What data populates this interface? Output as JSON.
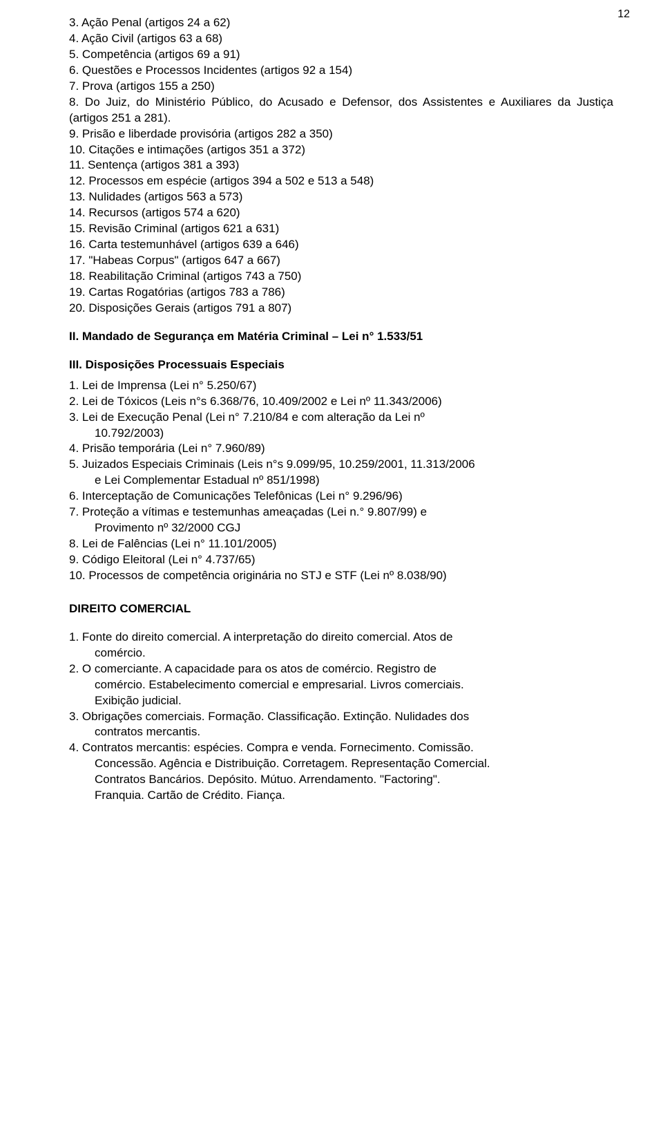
{
  "page_number": "12",
  "section1_items": [
    "3. Ação Penal (artigos 24 a 62)",
    "4. Ação Civil (artigos 63 a 68)",
    "5. Competência (artigos 69 a 91)",
    "6. Questões e Processos Incidentes (artigos 92 a 154)",
    "7. Prova (artigos 155 a 250)",
    "8. Do Juiz, do Ministério Público, do Acusado e Defensor, dos Assistentes e Auxiliares da Justiça (artigos 251 a 281).",
    "9. Prisão e liberdade provisória (artigos 282 a 350)",
    "10. Citações e intimações (artigos 351 a 372)",
    "11. Sentença (artigos 381 a 393)",
    "12. Processos em espécie (artigos 394 a 502 e 513 a 548)",
    "13. Nulidades (artigos 563 a 573)",
    "14. Recursos (artigos 574 a 620)",
    "15. Revisão Criminal (artigos 621 a 631)",
    "16. Carta testemunhável (artigos 639 a 646)",
    "17. \"Habeas Corpus\" (artigos 647 a 667)",
    "18. Reabilitação Criminal (artigos 743 a 750)",
    "19. Cartas Rogatórias (artigos 783 a 786)",
    "20. Disposições Gerais (artigos 791 a 807)"
  ],
  "heading2": "II. Mandado de Segurança em Matéria Criminal – Lei n° 1.533/51",
  "heading3": "III. Disposições Processuais Especiais",
  "section3_items": {
    "l1": "1.  Lei de Imprensa (Lei n° 5.250/67)",
    "l2": "2.  Lei de Tóxicos (Leis n°s 6.368/76, 10.409/2002 e Lei nº 11.343/2006)",
    "l3_a": "3.  Lei  de  Execução  Penal  (Lei  n°  7.210/84  e  com  alteração  da  Lei  nº",
    "l3_b": "10.792/2003)",
    "l4": "4.  Prisão temporária (Lei n° 7.960/89)",
    "l5_a": "5.  Juizados Especiais Criminais (Leis n°s 9.099/95, 10.259/2001, 11.313/2006",
    "l5_b": "e Lei Complementar Estadual nº 851/1998)",
    "l6": "6.  Interceptação de Comunicações Telefônicas (Lei n° 9.296/96)",
    "l7_a": "7.   Proteção  a  vítimas  e  testemunhas  ameaçadas  (Lei  n.°  9.807/99)  e",
    "l7_b": "Provimento nº 32/2000 CGJ",
    "l8": "8.  Lei de Falências (Lei n° 11.101/2005)",
    "l9": "9.  Código Eleitoral (Lei n° 4.737/65)",
    "l10": "10. Processos de competência originária no STJ e STF (Lei nº 8.038/90)"
  },
  "heading4": "DIREITO COMERCIAL",
  "section4_items": {
    "l1_a": "1.  Fonte do direito comercial.  A interpretação do direito comercial. Atos de",
    "l1_b": "comércio.",
    "l2_a": "2.  O  comerciante.  A  capacidade  para  os  atos  de  comércio.  Registro  de",
    "l2_b": "comércio.  Estabelecimento  comercial  e  empresarial.  Livros  comerciais.",
    "l2_c": "Exibição judicial.",
    "l3_a": "3.  Obrigações comerciais.  Formação.  Classificação.  Extinção.  Nulidades dos",
    "l3_b": "contratos mercantis.",
    "l4_a": "4.  Contratos mercantis: espécies.  Compra e venda.  Fornecimento.  Comissão.",
    "l4_b": "Concessão. Agência e Distribuição.  Corretagem. Representação Comercial.",
    "l4_c": "Contratos    Bancários.    Depósito.    Mútuo.    Arrendamento.    \"Factoring\".",
    "l4_d": "Franquia. Cartão de Crédito. Fiança."
  }
}
